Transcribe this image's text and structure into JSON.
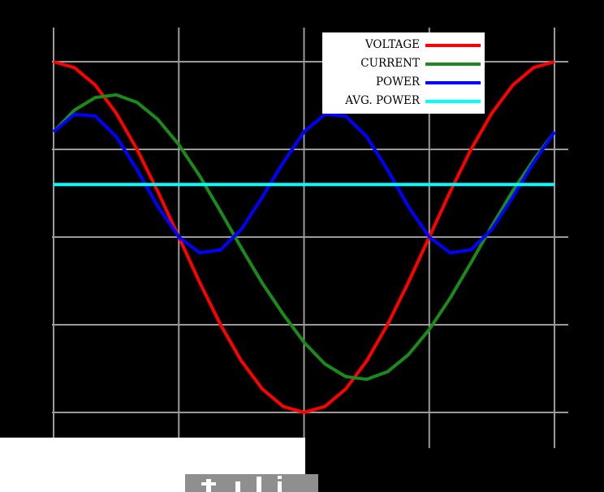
{
  "chart_data": {
    "type": "line",
    "title": "",
    "xlabel": "",
    "ylabel": "",
    "xlim": [
      0,
      360
    ],
    "ylim": [
      -1.25,
      1.25
    ],
    "x_gridlines": [
      0,
      90,
      180,
      270,
      360
    ],
    "y_gridlines": [
      -1,
      -0.5,
      0,
      0.5,
      1
    ],
    "grid": true,
    "legend_position": "top-right",
    "x": [
      0,
      15,
      30,
      45,
      60,
      75,
      90,
      105,
      120,
      135,
      150,
      165,
      180,
      195,
      210,
      225,
      240,
      255,
      270,
      285,
      300,
      315,
      330,
      345,
      360
    ],
    "series": [
      {
        "name": "VOLTAGE",
        "color": "#ff0000",
        "values": [
          1.0,
          0.966,
          0.866,
          0.707,
          0.5,
          0.259,
          0.0,
          -0.259,
          -0.5,
          -0.707,
          -0.866,
          -0.966,
          -1.0,
          -0.966,
          -0.866,
          -0.707,
          -0.5,
          -0.259,
          0.0,
          0.259,
          0.5,
          0.707,
          0.866,
          0.966,
          1.0
        ]
      },
      {
        "name": "CURRENT",
        "color": "#1a8a1a",
        "values": [
          0.6,
          0.724,
          0.796,
          0.811,
          0.768,
          0.671,
          0.527,
          0.348,
          0.146,
          -0.063,
          -0.263,
          -0.44,
          -0.6,
          -0.724,
          -0.796,
          -0.811,
          -0.768,
          -0.671,
          -0.527,
          -0.348,
          -0.146,
          0.063,
          0.263,
          0.44,
          0.6
        ]
      },
      {
        "name": "POWER",
        "color": "#0000ff",
        "values": [
          0.6,
          0.7,
          0.69,
          0.573,
          0.384,
          0.174,
          0.0,
          -0.09,
          -0.073,
          0.045,
          0.228,
          0.425,
          0.6,
          0.7,
          0.69,
          0.573,
          0.384,
          0.174,
          0.0,
          -0.09,
          -0.073,
          0.045,
          0.228,
          0.425,
          0.6
        ]
      },
      {
        "name": "AVG. POWER",
        "color": "#00ffff",
        "values": [
          0.3,
          0.3,
          0.3,
          0.3,
          0.3,
          0.3,
          0.3,
          0.3,
          0.3,
          0.3,
          0.3,
          0.3,
          0.3,
          0.3,
          0.3,
          0.3,
          0.3,
          0.3,
          0.3,
          0.3,
          0.3,
          0.3,
          0.3,
          0.3,
          0.3
        ]
      }
    ]
  },
  "colors": {
    "background": "#000000",
    "grid": "#9a9a9a",
    "legend_background": "#ffffff",
    "overlay_card": "#ffffff",
    "overlay_thumb": "#8f8f8f"
  },
  "legend": {
    "items": [
      {
        "label": "VOLTAGE",
        "color": "#ff0000"
      },
      {
        "label": "CURRENT",
        "color": "#1a8a1a"
      },
      {
        "label": "POWER",
        "color": "#0000ff"
      },
      {
        "label": "AVG. POWER",
        "color": "#00ffff"
      }
    ]
  }
}
